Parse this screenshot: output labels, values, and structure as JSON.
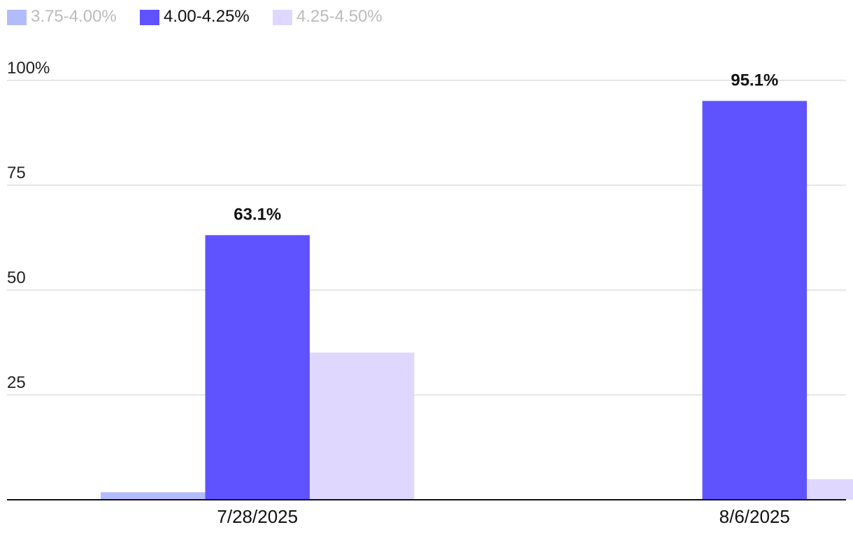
{
  "chart_data": {
    "type": "bar",
    "categories": [
      "7/28/2025",
      "8/6/2025"
    ],
    "series": [
      {
        "name": "3.75-4.00%",
        "color": "#b3bcfb",
        "legend_text_color": "#bbbbbb",
        "values": [
          1.8,
          0
        ]
      },
      {
        "name": "4.00-4.25%",
        "color": "#5f52ff",
        "legend_text_color": "#111111",
        "values": [
          63.1,
          95.1
        ]
      },
      {
        "name": "4.25-4.50%",
        "color": "#e0d7ff",
        "legend_text_color": "#bbbbbb",
        "values": [
          35.1,
          4.9
        ]
      }
    ],
    "data_labels": [
      "63.1%",
      "95.1%"
    ],
    "data_label_series": "4.00-4.25%",
    "y_ticks": [
      25,
      50,
      75,
      100
    ],
    "y_tick_labels": [
      "25",
      "50",
      "75",
      "100%"
    ],
    "ylim": [
      0,
      100
    ],
    "grid": true,
    "legend_position": "top-left",
    "title": "",
    "xlabel": "",
    "ylabel": ""
  }
}
